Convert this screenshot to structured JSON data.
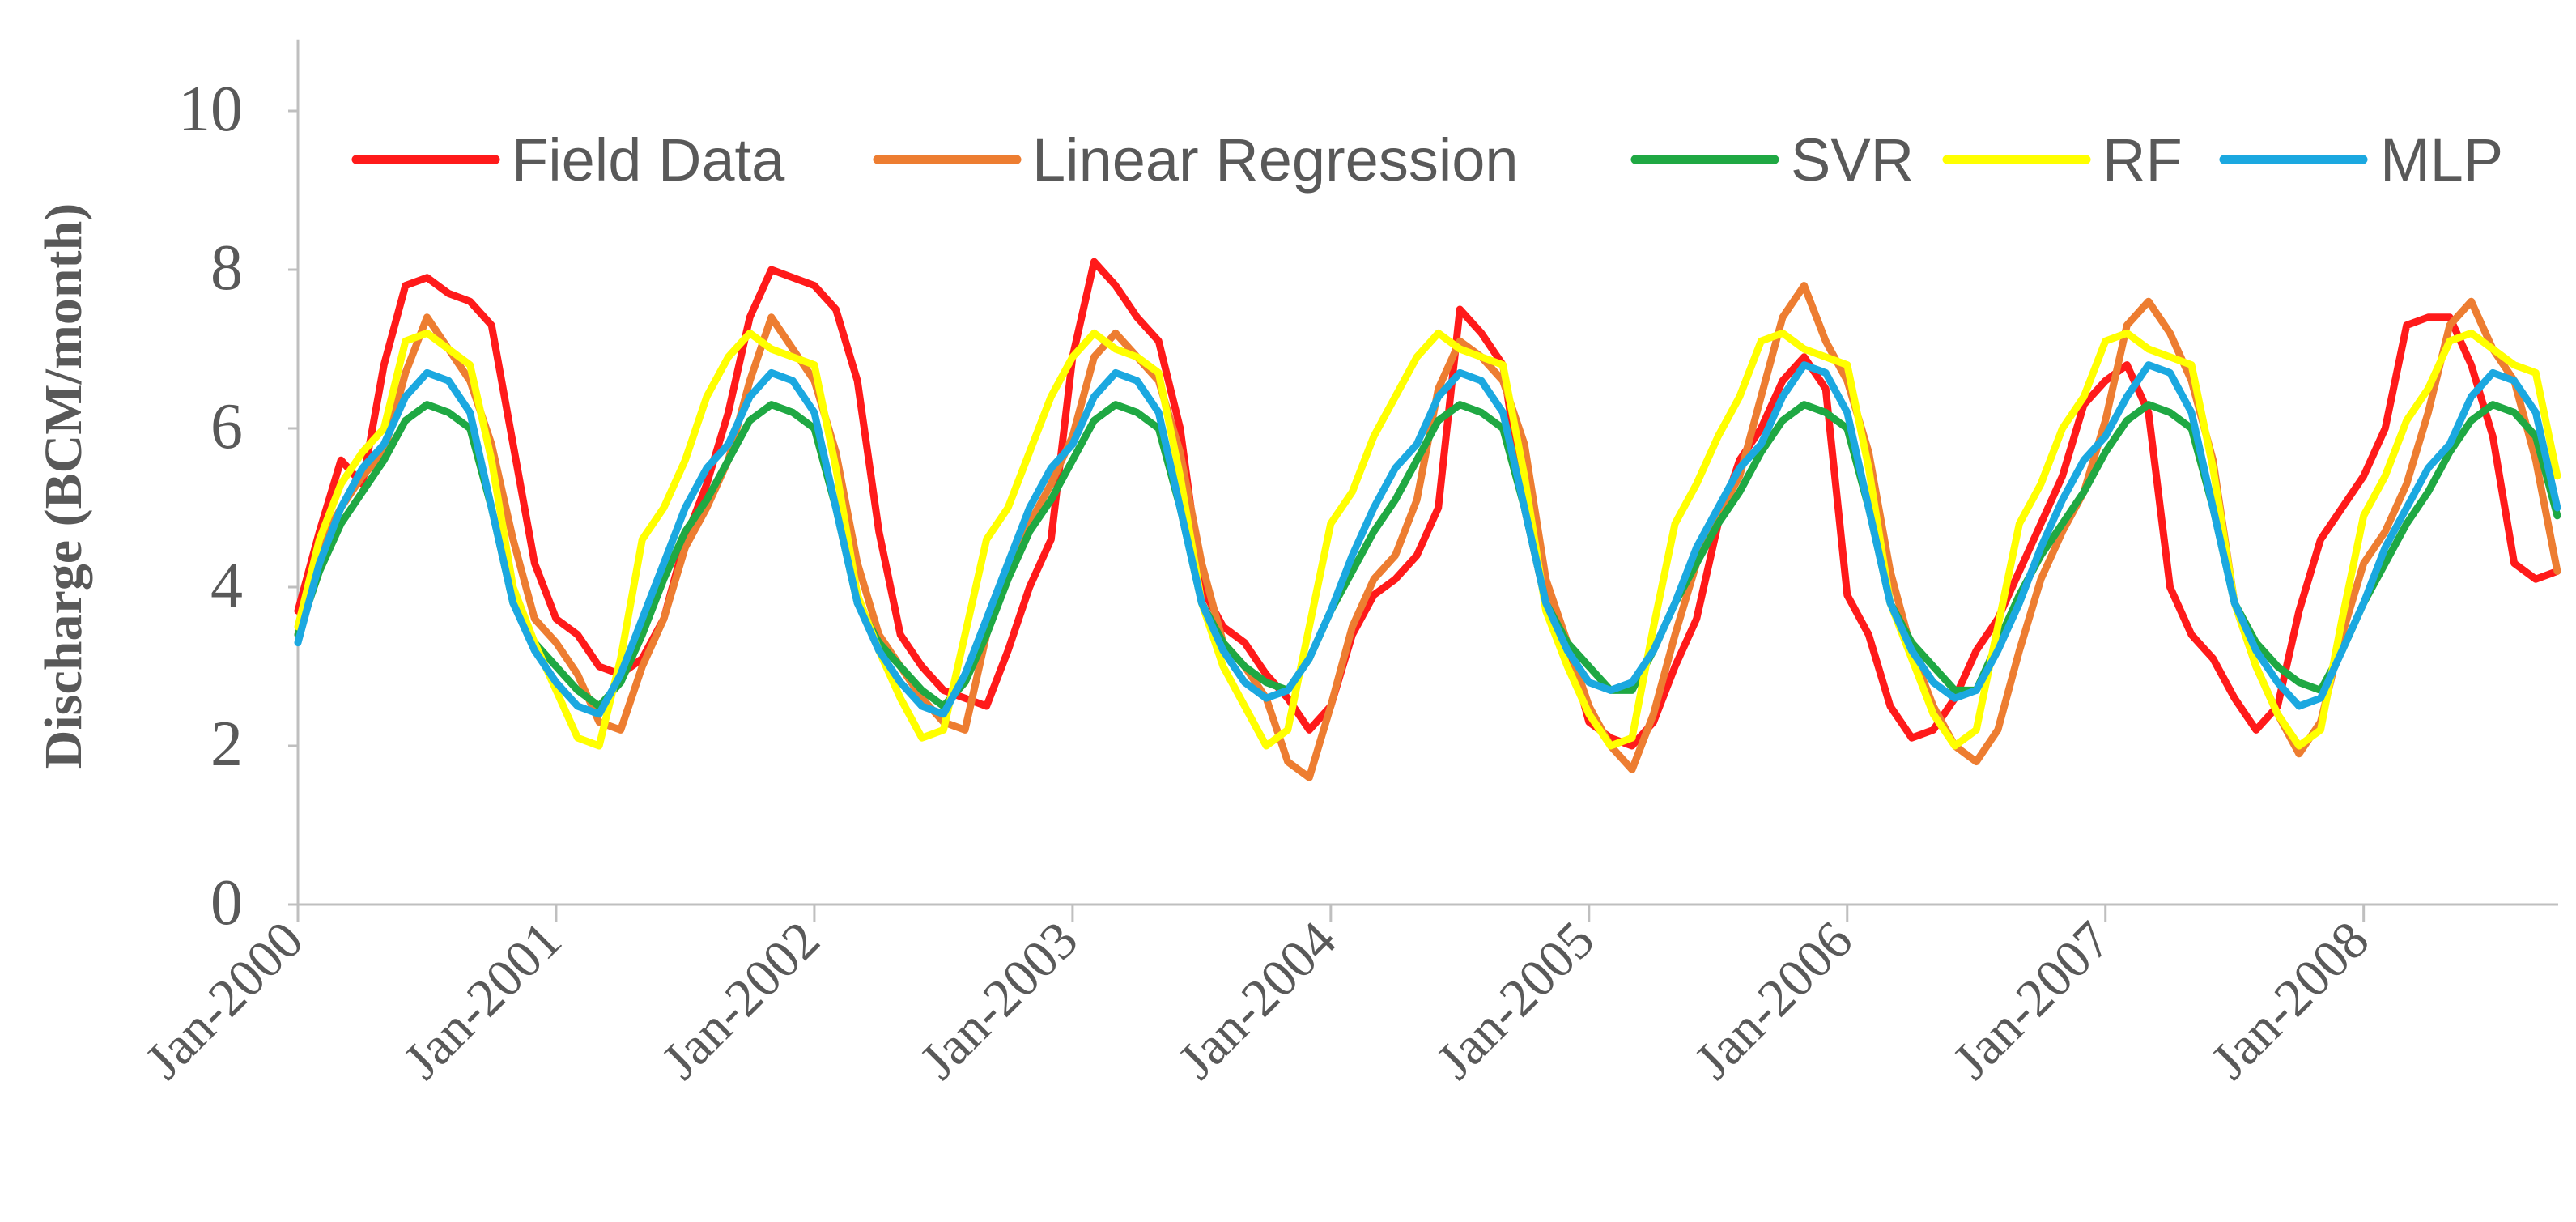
{
  "chart_data": {
    "type": "line",
    "title": "",
    "xlabel": "",
    "ylabel": "Discharge (BCM/month)",
    "ylim": [
      0,
      10
    ],
    "yticks": [
      0,
      2,
      4,
      6,
      8,
      10
    ],
    "x_tick_labels": [
      "Jan-2000",
      "Jan-2001",
      "Jan-2002",
      "Jan-2003",
      "Jan-2004",
      "Jan-2005",
      "Jan-2006",
      "Jan-2007",
      "Jan-2008"
    ],
    "x_start": "Jan-2000",
    "x_unit": "months",
    "x_range_months": [
      0,
      105
    ],
    "legend_position": "top",
    "series": [
      {
        "name": "Field Data",
        "color": "#ff1a1a",
        "values": [
          3.7,
          4.7,
          5.6,
          5.3,
          6.8,
          7.8,
          7.9,
          7.7,
          7.6,
          7.3,
          5.8,
          4.3,
          3.6,
          3.4,
          3.0,
          2.9,
          3.1,
          3.6,
          4.6,
          5.3,
          6.2,
          7.4,
          8.0,
          7.9,
          7.8,
          7.5,
          6.6,
          4.7,
          3.4,
          3.0,
          2.7,
          2.6,
          2.5,
          3.2,
          4.0,
          4.6,
          6.9,
          8.1,
          7.8,
          7.4,
          7.1,
          6.0,
          4.0,
          3.5,
          3.3,
          2.9,
          2.6,
          2.2,
          2.5,
          3.4,
          3.9,
          4.1,
          4.4,
          5.0,
          7.5,
          7.2,
          6.8,
          5.0,
          3.8,
          3.3,
          2.3,
          2.1,
          2.0,
          2.3,
          3.0,
          3.6,
          4.8,
          5.6,
          6.0,
          6.6,
          6.9,
          6.5,
          3.9,
          3.4,
          2.5,
          2.1,
          2.2,
          2.6,
          3.2,
          3.6,
          4.2,
          4.8,
          5.4,
          6.3,
          6.6,
          6.8,
          6.2,
          4.0,
          3.4,
          3.1,
          2.6,
          2.2,
          2.5,
          3.7,
          4.6,
          5.0,
          5.4,
          6.0,
          7.3,
          7.4,
          7.4,
          6.8,
          5.9,
          4.3,
          4.1,
          4.2
        ]
      },
      {
        "name": "Linear Regression",
        "color": "#ed7d31",
        "values": [
          3.4,
          4.5,
          5.0,
          5.4,
          5.7,
          6.7,
          7.4,
          7.0,
          6.6,
          5.8,
          4.6,
          3.6,
          3.3,
          2.9,
          2.3,
          2.2,
          3.0,
          3.6,
          4.5,
          5.0,
          5.6,
          6.6,
          7.4,
          7.0,
          6.6,
          5.7,
          4.3,
          3.4,
          3.0,
          2.6,
          2.3,
          2.2,
          3.4,
          4.3,
          4.8,
          5.3,
          5.9,
          6.9,
          7.2,
          6.9,
          6.6,
          5.7,
          4.3,
          3.3,
          3.0,
          2.6,
          1.8,
          1.6,
          2.5,
          3.5,
          4.1,
          4.4,
          5.1,
          6.5,
          7.1,
          6.9,
          6.6,
          5.8,
          4.1,
          3.3,
          2.5,
          2.0,
          1.7,
          2.4,
          3.4,
          4.3,
          4.9,
          5.4,
          6.4,
          7.4,
          7.8,
          7.1,
          6.6,
          5.7,
          4.2,
          3.2,
          2.5,
          2.0,
          1.8,
          2.2,
          3.2,
          4.1,
          4.7,
          5.2,
          6.1,
          7.3,
          7.6,
          7.2,
          6.6,
          5.6,
          3.8,
          3.0,
          2.4,
          1.9,
          2.3,
          3.4,
          4.3,
          4.7,
          5.3,
          6.2,
          7.3,
          7.6,
          7.0,
          6.6,
          5.6,
          4.2
        ]
      },
      {
        "name": "SVR",
        "color": "#1fa843",
        "values": [
          3.4,
          4.2,
          4.8,
          5.2,
          5.6,
          6.1,
          6.3,
          6.2,
          6.0,
          5.0,
          3.8,
          3.3,
          3.0,
          2.7,
          2.5,
          2.8,
          3.4,
          4.1,
          4.7,
          5.1,
          5.6,
          6.1,
          6.3,
          6.2,
          6.0,
          5.0,
          3.8,
          3.3,
          3.0,
          2.7,
          2.5,
          2.8,
          3.4,
          4.1,
          4.7,
          5.1,
          5.6,
          6.1,
          6.3,
          6.2,
          6.0,
          5.0,
          3.8,
          3.3,
          3.0,
          2.8,
          2.7,
          3.1,
          3.7,
          4.2,
          4.7,
          5.1,
          5.6,
          6.1,
          6.3,
          6.2,
          6.0,
          5.0,
          3.8,
          3.3,
          3.0,
          2.7,
          2.7,
          3.2,
          3.8,
          4.3,
          4.8,
          5.2,
          5.7,
          6.1,
          6.3,
          6.2,
          6.0,
          5.0,
          3.8,
          3.3,
          3.0,
          2.7,
          2.7,
          3.3,
          3.9,
          4.4,
          4.8,
          5.2,
          5.7,
          6.1,
          6.3,
          6.2,
          6.0,
          5.0,
          3.8,
          3.3,
          3.0,
          2.8,
          2.7,
          3.2,
          3.8,
          4.3,
          4.8,
          5.2,
          5.7,
          6.1,
          6.3,
          6.2,
          5.9,
          4.9
        ]
      },
      {
        "name": "RF",
        "color": "#ffff00",
        "values": [
          3.5,
          4.6,
          5.3,
          5.7,
          6.0,
          7.1,
          7.2,
          7.0,
          6.8,
          5.6,
          4.0,
          3.3,
          2.7,
          2.1,
          2.0,
          3.1,
          4.6,
          5.0,
          5.6,
          6.4,
          6.9,
          7.2,
          7.0,
          6.9,
          6.8,
          5.5,
          3.9,
          3.2,
          2.6,
          2.1,
          2.2,
          3.4,
          4.6,
          5.0,
          5.7,
          6.4,
          6.9,
          7.2,
          7.0,
          6.9,
          6.7,
          5.4,
          3.8,
          3.0,
          2.5,
          2.0,
          2.2,
          3.5,
          4.8,
          5.2,
          5.9,
          6.4,
          6.9,
          7.2,
          7.0,
          6.9,
          6.8,
          5.4,
          3.7,
          3.0,
          2.4,
          2.0,
          2.1,
          3.5,
          4.8,
          5.3,
          5.9,
          6.4,
          7.1,
          7.2,
          7.0,
          6.9,
          6.8,
          5.5,
          3.8,
          3.1,
          2.4,
          2.0,
          2.2,
          3.5,
          4.8,
          5.3,
          6.0,
          6.4,
          7.1,
          7.2,
          7.0,
          6.9,
          6.8,
          5.5,
          3.8,
          3.0,
          2.4,
          2.0,
          2.2,
          3.6,
          4.9,
          5.4,
          6.1,
          6.5,
          7.1,
          7.2,
          7.0,
          6.8,
          6.7,
          5.4
        ]
      },
      {
        "name": "MLP",
        "color": "#1ba8e0",
        "values": [
          3.3,
          4.3,
          5.0,
          5.5,
          5.8,
          6.4,
          6.7,
          6.6,
          6.2,
          5.0,
          3.8,
          3.2,
          2.8,
          2.5,
          2.4,
          2.9,
          3.6,
          4.3,
          5.0,
          5.5,
          5.8,
          6.4,
          6.7,
          6.6,
          6.2,
          5.0,
          3.8,
          3.2,
          2.8,
          2.5,
          2.4,
          2.9,
          3.6,
          4.3,
          5.0,
          5.5,
          5.8,
          6.4,
          6.7,
          6.6,
          6.2,
          5.0,
          3.8,
          3.2,
          2.8,
          2.6,
          2.7,
          3.1,
          3.7,
          4.4,
          5.0,
          5.5,
          5.8,
          6.4,
          6.7,
          6.6,
          6.2,
          5.0,
          3.8,
          3.2,
          2.8,
          2.7,
          2.8,
          3.2,
          3.8,
          4.5,
          5.0,
          5.5,
          5.8,
          6.4,
          6.8,
          6.7,
          6.2,
          5.0,
          3.8,
          3.2,
          2.8,
          2.6,
          2.7,
          3.2,
          3.8,
          4.5,
          5.1,
          5.6,
          5.9,
          6.4,
          6.8,
          6.7,
          6.2,
          5.0,
          3.8,
          3.2,
          2.8,
          2.5,
          2.6,
          3.2,
          3.8,
          4.5,
          5.0,
          5.5,
          5.8,
          6.4,
          6.7,
          6.6,
          6.2,
          5.0
        ]
      }
    ]
  }
}
